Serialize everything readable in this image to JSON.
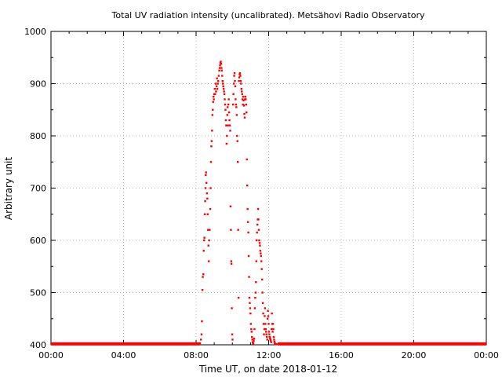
{
  "chart_data": {
    "type": "scatter",
    "title": "Total UV radiation intensity (uncalibrated). Metsähovi Radio Observatory",
    "xlabel": "Time UT, on date 2018-01-12",
    "ylabel": "Arbitrary unit",
    "xlim": [
      "00:00",
      "24:00"
    ],
    "ylim": [
      400,
      1000
    ],
    "grid": true,
    "legend": "none",
    "marker_color": "#ff0000",
    "x_ticks": [
      {
        "hour": 0,
        "label": "00:00"
      },
      {
        "hour": 4,
        "label": "04:00"
      },
      {
        "hour": 8,
        "label": "08:00"
      },
      {
        "hour": 12,
        "label": "12:00"
      },
      {
        "hour": 16,
        "label": "16:00"
      },
      {
        "hour": 20,
        "label": "20:00"
      },
      {
        "hour": 24,
        "label": "00:00"
      }
    ],
    "y_ticks": [
      400,
      500,
      600,
      700,
      800,
      900,
      1000
    ],
    "series": [
      {
        "baseline_segments": [
          {
            "from_hour": 0.0,
            "to_hour": 8.2,
            "value": 401
          },
          {
            "from_hour": 12.5,
            "to_hour": 24.0,
            "value": 401
          }
        ],
        "points": [
          [
            8.22,
            403
          ],
          [
            8.27,
            410
          ],
          [
            8.3,
            420
          ],
          [
            8.32,
            445
          ],
          [
            8.35,
            505
          ],
          [
            8.37,
            530
          ],
          [
            8.4,
            535
          ],
          [
            8.42,
            580
          ],
          [
            8.44,
            600
          ],
          [
            8.46,
            605
          ],
          [
            8.48,
            650
          ],
          [
            8.5,
            675
          ],
          [
            8.52,
            700
          ],
          [
            8.53,
            725
          ],
          [
            8.55,
            730
          ],
          [
            8.57,
            710
          ],
          [
            8.6,
            690
          ],
          [
            8.62,
            680
          ],
          [
            8.64,
            650
          ],
          [
            8.66,
            620
          ],
          [
            8.68,
            590
          ],
          [
            8.7,
            560
          ],
          [
            8.72,
            600
          ],
          [
            8.75,
            620
          ],
          [
            8.78,
            660
          ],
          [
            8.8,
            700
          ],
          [
            8.82,
            750
          ],
          [
            8.84,
            780
          ],
          [
            8.86,
            790
          ],
          [
            8.88,
            810
          ],
          [
            8.9,
            840
          ],
          [
            8.92,
            850
          ],
          [
            8.94,
            865
          ],
          [
            8.96,
            875
          ],
          [
            8.98,
            870
          ],
          [
            9.0,
            880
          ],
          [
            9.03,
            890
          ],
          [
            9.05,
            880
          ],
          [
            9.08,
            900
          ],
          [
            9.1,
            885
          ],
          [
            9.13,
            895
          ],
          [
            9.15,
            910
          ],
          [
            9.17,
            890
          ],
          [
            9.2,
            900
          ],
          [
            9.22,
            905
          ],
          [
            9.25,
            915
          ],
          [
            9.28,
            925
          ],
          [
            9.3,
            930
          ],
          [
            9.32,
            935
          ],
          [
            9.34,
            940
          ],
          [
            9.36,
            942
          ],
          [
            9.38,
            938
          ],
          [
            9.4,
            930
          ],
          [
            9.42,
            925
          ],
          [
            9.44,
            915
          ],
          [
            9.46,
            905
          ],
          [
            9.48,
            900
          ],
          [
            9.5,
            895
          ],
          [
            9.52,
            890
          ],
          [
            9.54,
            885
          ],
          [
            9.56,
            880
          ],
          [
            9.58,
            870
          ],
          [
            9.6,
            860
          ],
          [
            9.62,
            850
          ],
          [
            9.64,
            830
          ],
          [
            9.66,
            820
          ],
          [
            9.68,
            785
          ],
          [
            9.7,
            800
          ],
          [
            9.72,
            840
          ],
          [
            9.74,
            855
          ],
          [
            9.76,
            820
          ],
          [
            9.78,
            860
          ],
          [
            9.8,
            870
          ],
          [
            9.82,
            845
          ],
          [
            9.84,
            830
          ],
          [
            9.86,
            820
          ],
          [
            9.88,
            810
          ],
          [
            9.9,
            665
          ],
          [
            9.92,
            620
          ],
          [
            9.94,
            560
          ],
          [
            9.95,
            555
          ],
          [
            9.97,
            470
          ],
          [
            9.99,
            420
          ],
          [
            10.01,
            410
          ],
          [
            10.04,
            860
          ],
          [
            10.06,
            880
          ],
          [
            10.08,
            900
          ],
          [
            10.1,
            915
          ],
          [
            10.12,
            920
          ],
          [
            10.14,
            905
          ],
          [
            10.16,
            895
          ],
          [
            10.18,
            870
          ],
          [
            10.2,
            860
          ],
          [
            10.22,
            855
          ],
          [
            10.24,
            840
          ],
          [
            10.26,
            800
          ],
          [
            10.28,
            790
          ],
          [
            10.3,
            750
          ],
          [
            10.32,
            620
          ],
          [
            10.34,
            490
          ],
          [
            10.36,
            905
          ],
          [
            10.38,
            912
          ],
          [
            10.4,
            918
          ],
          [
            10.42,
            920
          ],
          [
            10.44,
            915
          ],
          [
            10.46,
            905
          ],
          [
            10.48,
            900
          ],
          [
            10.5,
            890
          ],
          [
            10.52,
            885
          ],
          [
            10.54,
            880
          ],
          [
            10.56,
            870
          ],
          [
            10.58,
            860
          ],
          [
            10.6,
            875
          ],
          [
            10.62,
            868
          ],
          [
            10.64,
            858
          ],
          [
            10.66,
            842
          ],
          [
            10.68,
            835
          ],
          [
            10.7,
            870
          ],
          [
            10.72,
            875
          ],
          [
            10.74,
            870
          ],
          [
            10.76,
            860
          ],
          [
            10.78,
            845
          ],
          [
            10.8,
            755
          ],
          [
            10.82,
            705
          ],
          [
            10.84,
            660
          ],
          [
            10.86,
            635
          ],
          [
            10.88,
            615
          ],
          [
            10.9,
            570
          ],
          [
            10.92,
            530
          ],
          [
            10.94,
            490
          ],
          [
            10.96,
            480
          ],
          [
            10.98,
            470
          ],
          [
            11.0,
            460
          ],
          [
            11.02,
            440
          ],
          [
            11.04,
            430
          ],
          [
            11.06,
            425
          ],
          [
            11.08,
            415
          ],
          [
            11.1,
            410
          ],
          [
            11.12,
            405
          ],
          [
            11.14,
            402
          ],
          [
            11.16,
            403
          ],
          [
            11.18,
            408
          ],
          [
            11.2,
            412
          ],
          [
            11.22,
            430
          ],
          [
            11.24,
            470
          ],
          [
            11.26,
            490
          ],
          [
            11.28,
            500
          ],
          [
            11.3,
            520
          ],
          [
            11.32,
            560
          ],
          [
            11.34,
            600
          ],
          [
            11.36,
            615
          ],
          [
            11.38,
            630
          ],
          [
            11.4,
            640
          ],
          [
            11.42,
            660
          ],
          [
            11.44,
            640
          ],
          [
            11.46,
            620
          ],
          [
            11.48,
            600
          ],
          [
            11.5,
            595
          ],
          [
            11.52,
            590
          ],
          [
            11.54,
            580
          ],
          [
            11.56,
            575
          ],
          [
            11.58,
            570
          ],
          [
            11.6,
            560
          ],
          [
            11.62,
            545
          ],
          [
            11.64,
            525
          ],
          [
            11.66,
            500
          ],
          [
            11.68,
            480
          ],
          [
            11.7,
            460
          ],
          [
            11.72,
            440
          ],
          [
            11.74,
            420
          ],
          [
            11.76,
            430
          ],
          [
            11.78,
            455
          ],
          [
            11.8,
            470
          ],
          [
            11.82,
            440
          ],
          [
            11.84,
            430
          ],
          [
            11.86,
            425
          ],
          [
            11.88,
            420
          ],
          [
            11.9,
            415
          ],
          [
            11.92,
            410
          ],
          [
            11.94,
            450
          ],
          [
            11.96,
            465
          ],
          [
            11.98,
            455
          ],
          [
            12.0,
            440
          ],
          [
            12.02,
            425
          ],
          [
            12.04,
            420
          ],
          [
            12.06,
            415
          ],
          [
            12.08,
            412
          ],
          [
            12.1,
            410
          ],
          [
            12.12,
            408
          ],
          [
            12.14,
            405
          ],
          [
            12.16,
            430
          ],
          [
            12.18,
            460
          ],
          [
            12.2,
            440
          ],
          [
            12.22,
            425
          ],
          [
            12.24,
            440
          ],
          [
            12.26,
            430
          ],
          [
            12.28,
            415
          ],
          [
            12.3,
            410
          ],
          [
            12.32,
            406
          ],
          [
            12.34,
            403
          ],
          [
            12.36,
            402
          ],
          [
            12.38,
            401
          ],
          [
            12.4,
            401
          ],
          [
            12.42,
            401
          ],
          [
            12.44,
            401
          ]
        ]
      }
    ]
  }
}
